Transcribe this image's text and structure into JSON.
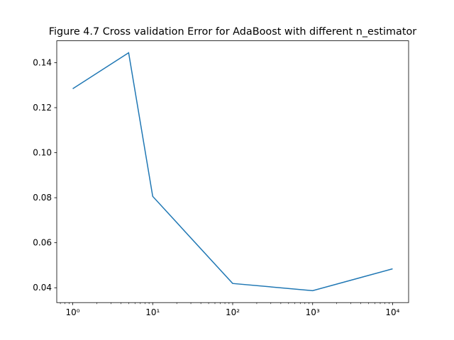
{
  "chart_data": {
    "type": "line",
    "title": "Figure 4.7 Cross validation Error for AdaBoost with different n_estimator",
    "x": [
      1,
      5,
      10,
      100,
      1000,
      10000
    ],
    "series": [
      {
        "color": "#1f77b4",
        "values": [
          0.1284,
          0.1444,
          0.0806,
          0.0419,
          0.0387,
          0.0484
        ]
      }
    ],
    "xscale": "log",
    "xlim": [
      0.631,
      15849
    ],
    "xticks": [
      {
        "value": 1,
        "label": "10⁰"
      },
      {
        "value": 10,
        "label": "10¹"
      },
      {
        "value": 100,
        "label": "10²"
      },
      {
        "value": 1000,
        "label": "10³"
      },
      {
        "value": 10000,
        "label": "10⁴"
      }
    ],
    "ylim": [
      0.0334,
      0.1497
    ],
    "yticks": [
      0.04,
      0.06,
      0.08,
      {
        "value": 0.1,
        "label": "0.10"
      },
      0.12,
      0.14
    ],
    "grid": false
  }
}
